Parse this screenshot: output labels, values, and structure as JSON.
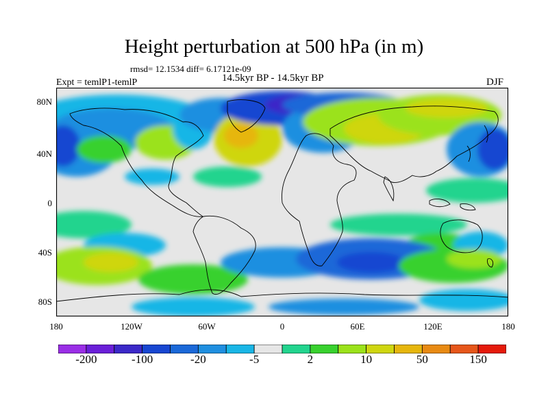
{
  "title": "Height perturbation at 500 hPa (in m)",
  "stats": "rmsd= 12.1534 diff= 6.17121e-09",
  "experiment": "Expt = temlP1-temlP",
  "period": "14.5kyr BP - 14.5kyr BP",
  "season": "DJF",
  "map": {
    "projection": "cylindrical equidistant",
    "lat_ticks": [
      "80N",
      "40N",
      "0",
      "40S",
      "80S"
    ],
    "lon_ticks": [
      "180",
      "120W",
      "60W",
      "0",
      "60E",
      "120E",
      "180"
    ],
    "background_color": "#e6e6e6"
  },
  "colorbar": {
    "colors": [
      "#9a2ee6",
      "#6a1fd8",
      "#3b28c8",
      "#1746d1",
      "#1a68d8",
      "#1f8fe0",
      "#19b6e6",
      "#e6e6e6",
      "#22d48e",
      "#38d12e",
      "#9be21a",
      "#cfd60f",
      "#e6b60c",
      "#e88a12",
      "#e6561a",
      "#e51a0a"
    ],
    "labels": [
      "-200",
      "-100",
      "-20",
      "-5",
      "2",
      "10",
      "50",
      "150"
    ]
  }
}
